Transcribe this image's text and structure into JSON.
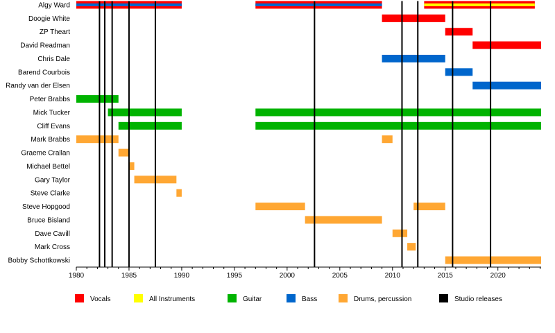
{
  "chart_data": {
    "type": "timeline",
    "xlim": [
      1980,
      2024.1
    ],
    "x_ticks": [
      1980,
      1985,
      1990,
      1995,
      2000,
      2005,
      2010,
      2015,
      2020
    ],
    "members": [
      "Algy Ward",
      "Doogie White",
      "ZP Theart",
      "David Readman",
      "Chris Dale",
      "Barend Courbois",
      "Randy van der Elsen",
      "Peter Brabbs",
      "Mick Tucker",
      "Cliff Evans",
      "Mark Brabbs",
      "Graeme Crallan",
      "Michael Bettel",
      "Gary Taylor",
      "Steve Clarke",
      "Steve Hopgood",
      "Bruce Bisland",
      "Dave Cavill",
      "Mark Cross",
      "Bobby Schottkowski"
    ],
    "roles": [
      {
        "key": "vocals",
        "label": "Vocals",
        "color": "#ff0000"
      },
      {
        "key": "all",
        "label": "All Instruments",
        "color": "#ffff00"
      },
      {
        "key": "guitar",
        "label": "Guitar",
        "color": "#00b300"
      },
      {
        "key": "bass",
        "label": "Bass",
        "color": "#0066cc"
      },
      {
        "key": "drums",
        "label": "Drums, percussion",
        "color": "#ffa733"
      },
      {
        "key": "studio",
        "label": "Studio releases",
        "color": "#000000"
      }
    ],
    "bars": [
      {
        "member": 0,
        "role": "vocals",
        "start": 1980,
        "end": 1990,
        "stripe": "bass"
      },
      {
        "member": 0,
        "role": "vocals",
        "start": 1997,
        "end": 2009,
        "stripe": "bass"
      },
      {
        "member": 0,
        "role": "vocals",
        "start": 2013,
        "end": 2023.5,
        "stripe": "all"
      },
      {
        "member": 1,
        "role": "vocals",
        "start": 2009,
        "end": 2015
      },
      {
        "member": 2,
        "role": "vocals",
        "start": 2015,
        "end": 2017.6
      },
      {
        "member": 3,
        "role": "vocals",
        "start": 2017.6,
        "end": 2024.1
      },
      {
        "member": 4,
        "role": "bass",
        "start": 2009,
        "end": 2015
      },
      {
        "member": 5,
        "role": "bass",
        "start": 2015,
        "end": 2017.6
      },
      {
        "member": 6,
        "role": "bass",
        "start": 2017.6,
        "end": 2024.1
      },
      {
        "member": 7,
        "role": "guitar",
        "start": 1980,
        "end": 1984
      },
      {
        "member": 8,
        "role": "guitar",
        "start": 1983,
        "end": 1990
      },
      {
        "member": 8,
        "role": "guitar",
        "start": 1997,
        "end": 2024.1
      },
      {
        "member": 9,
        "role": "guitar",
        "start": 1984,
        "end": 1990
      },
      {
        "member": 9,
        "role": "guitar",
        "start": 1997,
        "end": 2024.1
      },
      {
        "member": 10,
        "role": "drums",
        "start": 1980,
        "end": 1984
      },
      {
        "member": 10,
        "role": "drums",
        "start": 2009,
        "end": 2010
      },
      {
        "member": 11,
        "role": "drums",
        "start": 1984,
        "end": 1985
      },
      {
        "member": 12,
        "role": "drums",
        "start": 1985,
        "end": 1985.5
      },
      {
        "member": 13,
        "role": "drums",
        "start": 1985.5,
        "end": 1989.5
      },
      {
        "member": 14,
        "role": "drums",
        "start": 1989.5,
        "end": 1990
      },
      {
        "member": 15,
        "role": "drums",
        "start": 1997,
        "end": 2001.7
      },
      {
        "member": 15,
        "role": "drums",
        "start": 2012,
        "end": 2015
      },
      {
        "member": 16,
        "role": "drums",
        "start": 2001.7,
        "end": 2009
      },
      {
        "member": 17,
        "role": "drums",
        "start": 2010,
        "end": 2011.4
      },
      {
        "member": 18,
        "role": "drums",
        "start": 2011.4,
        "end": 2012.2
      },
      {
        "member": 19,
        "role": "drums",
        "start": 2015,
        "end": 2024.1
      }
    ],
    "studio_releases": [
      1982.2,
      1982.7,
      1983.4,
      1985,
      1987.5,
      2002.6,
      2010.9,
      2012.4,
      2015.7,
      2019.3
    ],
    "grid": false,
    "legend_position": "bottom"
  }
}
